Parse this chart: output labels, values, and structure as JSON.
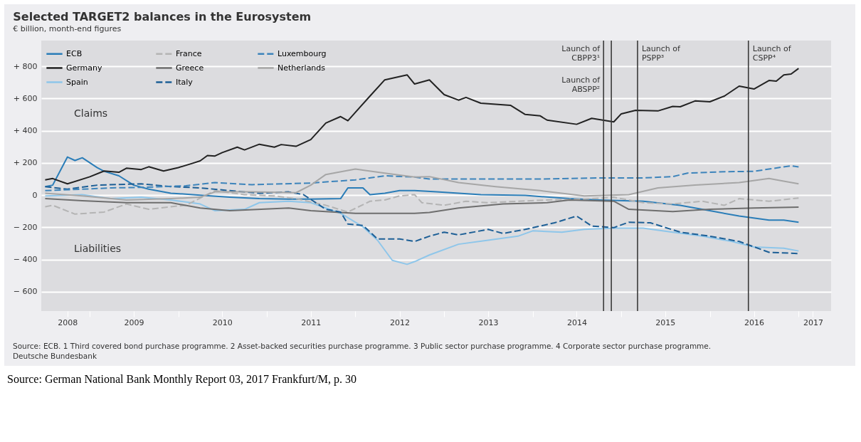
{
  "chart_data": {
    "type": "line",
    "title": "Selected TARGET2 balances in the Eurosystem",
    "subtitle": "€ billion, month-end figures",
    "xlim": [
      "2008-06-15",
      "2017-05-15"
    ],
    "xticks": [
      {
        "value": "2008-10",
        "label": "2008"
      },
      {
        "value": "2009-01",
        "label": null
      },
      {
        "value": "2009-07",
        "label": "2009"
      },
      {
        "value": "2010-01",
        "label": null
      },
      {
        "value": "2010-07",
        "label": "2010"
      },
      {
        "value": "2011-01",
        "label": null
      },
      {
        "value": "2011-07",
        "label": "2011"
      },
      {
        "value": "2012-01",
        "label": null
      },
      {
        "value": "2012-07",
        "label": "2012"
      },
      {
        "value": "2013-01",
        "label": null
      },
      {
        "value": "2013-07",
        "label": "2013"
      },
      {
        "value": "2014-01",
        "label": null
      },
      {
        "value": "2014-07",
        "label": "2014"
      },
      {
        "value": "2015-01",
        "label": null
      },
      {
        "value": "2015-07",
        "label": "2015"
      },
      {
        "value": "2016-01",
        "label": null
      },
      {
        "value": "2016-07",
        "label": "2016"
      },
      {
        "value": "2017-01",
        "label": null
      },
      {
        "value": "2017-03",
        "label": "2017"
      }
    ],
    "ylim": [
      -720,
      960
    ],
    "yticks": [
      {
        "value": -600,
        "label": "− 600"
      },
      {
        "value": -400,
        "label": "− 400"
      },
      {
        "value": -200,
        "label": "− 200"
      },
      {
        "value": 0,
        "label": "0"
      },
      {
        "value": 200,
        "label": "+ 200"
      },
      {
        "value": 400,
        "label": "+ 400"
      },
      {
        "value": 600,
        "label": "+ 600"
      },
      {
        "value": 800,
        "label": "+ 800"
      }
    ],
    "grid": "y",
    "legend": "top left",
    "line_style": "solid",
    "series": [
      {
        "name": "ECB",
        "color": "#2a7db8",
        "x": [
          "2008-07",
          "2008-08",
          "2008-10",
          "2008-11",
          "2008-12",
          "2009-02",
          "2009-03",
          "2009-05",
          "2009-07",
          "2009-09",
          "2009-12",
          "2010-04",
          "2010-08",
          "2010-12",
          "2011-04",
          "2011-07",
          "2011-11",
          "2011-12",
          "2012-02",
          "2012-03",
          "2012-05",
          "2012-07",
          "2012-09",
          "2012-12",
          "2013-06",
          "2013-12",
          "2014-06",
          "2014-10",
          "2015-04",
          "2015-09",
          "2016-01",
          "2016-05",
          "2016-09",
          "2016-11",
          "2017-01"
        ],
        "values": [
          53,
          62,
          237,
          215,
          232,
          170,
          148,
          120,
          62,
          37,
          12,
          0,
          -13,
          -22,
          -25,
          -25,
          -22,
          45,
          45,
          3,
          12,
          28,
          28,
          20,
          3,
          -2,
          -22,
          -30,
          -38,
          -63,
          -97,
          -130,
          -155,
          -155,
          -168
        ]
      },
      {
        "name": "Germany",
        "color": "#222222",
        "x": [
          "2008-07",
          "2008-08",
          "2008-10",
          "2009-01",
          "2009-03",
          "2009-05",
          "2009-06",
          "2009-08",
          "2009-09",
          "2009-11",
          "2010-01",
          "2010-03",
          "2010-04",
          "2010-05",
          "2010-06",
          "2010-07",
          "2010-09",
          "2010-10",
          "2010-12",
          "2011-02",
          "2011-03",
          "2011-05",
          "2011-07",
          "2011-09",
          "2011-11",
          "2011-12",
          "2012-03",
          "2012-05",
          "2012-08",
          "2012-09",
          "2012-11",
          "2013-01",
          "2013-03",
          "2013-04",
          "2013-06",
          "2013-10",
          "2013-12",
          "2014-02",
          "2014-03",
          "2014-07",
          "2014-09",
          "2014-12",
          "2015-01",
          "2015-03",
          "2015-06",
          "2015-08",
          "2015-09",
          "2015-11",
          "2016-01",
          "2016-03",
          "2016-05",
          "2016-07",
          "2016-09",
          "2016-10",
          "2016-11",
          "2016-12",
          "2017-01"
        ],
        "values": [
          95,
          103,
          70,
          114,
          150,
          142,
          167,
          159,
          176,
          150,
          171,
          198,
          213,
          246,
          243,
          264,
          298,
          281,
          316,
          298,
          314,
          303,
          345,
          448,
          488,
          462,
          615,
          716,
          747,
          690,
          716,
          624,
          590,
          607,
          571,
          558,
          501,
          492,
          466,
          440,
          477,
          455,
          505,
          527,
          523,
          551,
          549,
          585,
          580,
          615,
          677,
          659,
          712,
          708,
          747,
          752,
          787
        ]
      },
      {
        "name": "Spain",
        "color": "#8ec6ea",
        "x": [
          "2008-07",
          "2008-12",
          "2009-04",
          "2009-08",
          "2009-12",
          "2010-04",
          "2010-06",
          "2010-10",
          "2010-12",
          "2011-04",
          "2011-07",
          "2011-09",
          "2011-11",
          "2012-02",
          "2012-04",
          "2012-06",
          "2012-08",
          "2012-09",
          "2012-11",
          "2013-03",
          "2013-07",
          "2013-11",
          "2014-01",
          "2014-05",
          "2014-08",
          "2014-12",
          "2015-04",
          "2015-08",
          "2015-12",
          "2016-04",
          "2016-07",
          "2016-11",
          "2017-01"
        ],
        "values": [
          -5,
          3,
          -22,
          -13,
          -30,
          -55,
          -97,
          -88,
          -47,
          -38,
          -47,
          -80,
          -113,
          -197,
          -280,
          -405,
          -430,
          -413,
          -372,
          -305,
          -280,
          -255,
          -222,
          -230,
          -213,
          -205,
          -205,
          -230,
          -255,
          -288,
          -322,
          -330,
          -347
        ]
      },
      {
        "name": "France",
        "color": "#b4b4b4",
        "line_style": "dashed",
        "x": [
          "2008-07",
          "2008-08",
          "2008-11",
          "2009-03",
          "2009-06",
          "2009-09",
          "2009-12",
          "2010-02",
          "2010-06",
          "2010-10",
          "2011-02",
          "2011-05",
          "2011-09",
          "2011-12",
          "2012-03",
          "2012-05",
          "2012-07",
          "2012-09",
          "2012-10",
          "2013-01",
          "2013-04",
          "2013-07",
          "2013-11",
          "2014-03",
          "2014-08",
          "2014-12",
          "2015-04",
          "2015-08",
          "2015-12",
          "2016-03",
          "2016-05",
          "2016-09",
          "2017-01"
        ],
        "values": [
          -72,
          -63,
          -118,
          -105,
          -55,
          -88,
          -72,
          -63,
          28,
          3,
          -5,
          -22,
          -63,
          -105,
          -38,
          -30,
          -5,
          3,
          -47,
          -63,
          -38,
          -47,
          -38,
          -30,
          -25,
          -13,
          -47,
          -55,
          -38,
          -63,
          -22,
          -38,
          -18
        ]
      },
      {
        "name": "Greece",
        "color": "#6e6e6e",
        "x": [
          "2008-07",
          "2008-12",
          "2009-06",
          "2009-12",
          "2010-04",
          "2010-08",
          "2011-04",
          "2011-07",
          "2012-01",
          "2012-09",
          "2012-11",
          "2013-03",
          "2013-09",
          "2014-03",
          "2014-06",
          "2014-12",
          "2015-02",
          "2015-08",
          "2016-01",
          "2016-07",
          "2017-01"
        ],
        "values": [
          -22,
          -35,
          -47,
          -47,
          -80,
          -97,
          -80,
          -97,
          -113,
          -113,
          -108,
          -80,
          -55,
          -47,
          -30,
          -38,
          -88,
          -102,
          -88,
          -80,
          -75
        ]
      },
      {
        "name": "Italy",
        "color": "#1d5f96",
        "line_style": "dashed",
        "x": [
          "2008-07",
          "2008-10",
          "2009-02",
          "2009-08",
          "2009-12",
          "2010-04",
          "2010-08",
          "2010-12",
          "2011-04",
          "2011-06",
          "2011-09",
          "2011-11",
          "2011-12",
          "2012-02",
          "2012-04",
          "2012-07",
          "2012-09",
          "2012-11",
          "2013-01",
          "2013-03",
          "2013-07",
          "2013-09",
          "2013-12",
          "2014-04",
          "2014-07",
          "2014-09",
          "2014-12",
          "2015-02",
          "2015-05",
          "2015-09",
          "2016-01",
          "2016-05",
          "2016-09",
          "2017-01"
        ],
        "values": [
          53,
          37,
          62,
          70,
          53,
          45,
          28,
          12,
          20,
          3,
          -88,
          -105,
          -180,
          -188,
          -272,
          -272,
          -288,
          -255,
          -230,
          -247,
          -213,
          -238,
          -213,
          -172,
          -130,
          -192,
          -202,
          -168,
          -172,
          -230,
          -255,
          -288,
          -355,
          -363
        ]
      },
      {
        "name": "Luxembourg",
        "color": "#3d84bb",
        "line_style": "dashed",
        "x": [
          "2008-07",
          "2008-12",
          "2009-04",
          "2009-08",
          "2010-02",
          "2010-06",
          "2010-11",
          "2011-07",
          "2012-01",
          "2012-05",
          "2012-09",
          "2012-11",
          "2013-07",
          "2014-02",
          "2014-10",
          "2015-04",
          "2015-08",
          "2015-10",
          "2016-03",
          "2016-07",
          "2016-09",
          "2016-12",
          "2017-01"
        ],
        "values": [
          28,
          37,
          45,
          48,
          58,
          78,
          65,
          75,
          95,
          120,
          112,
          100,
          100,
          100,
          107,
          107,
          115,
          137,
          145,
          148,
          162,
          182,
          175
        ]
      },
      {
        "name": "Netherlands",
        "color": "#a6a6a6",
        "x": [
          "2008-07",
          "2008-12",
          "2009-06",
          "2009-12",
          "2010-04",
          "2010-06",
          "2010-11",
          "2011-05",
          "2011-07",
          "2011-09",
          "2012-01",
          "2012-05",
          "2012-09",
          "2012-11",
          "2013-03",
          "2013-08",
          "2014-02",
          "2014-08",
          "2015-02",
          "2015-06",
          "2015-11",
          "2016-05",
          "2016-09",
          "2017-01"
        ],
        "values": [
          12,
          -5,
          -30,
          -22,
          -13,
          20,
          20,
          15,
          62,
          128,
          162,
          137,
          112,
          115,
          78,
          53,
          28,
          -5,
          3,
          45,
          62,
          78,
          103,
          70
        ]
      }
    ],
    "ref_lines": [
      {
        "axis": "x",
        "value": "2014-10-20",
        "label": "Launch of CBPP3¹",
        "color": "#3a3a3a"
      },
      {
        "axis": "x",
        "value": "2014-11-21",
        "label": "Launch of ABSPP²",
        "color": "#3a3a3a"
      },
      {
        "axis": "x",
        "value": "2015-03-09",
        "label": "Launch of PSPP³",
        "color": "#3a3a3a"
      },
      {
        "axis": "x",
        "value": "2016-06-08",
        "label": "Launch of CSPP⁴",
        "color": "#3a3a3a"
      }
    ],
    "annotations": [
      "Claims",
      "Liabilities",
      "Source: ECB. 1 Third covered bond purchase programme. 2 Asset-backed securities purchase programme. 3 Public sector purchase programme. 4 Corporate sector purchase programme.",
      "Deutsche Bundesbank",
      "Source:  German National Bank Monthly Report 03, 2017 Frankfurt/M, p. 30"
    ]
  }
}
